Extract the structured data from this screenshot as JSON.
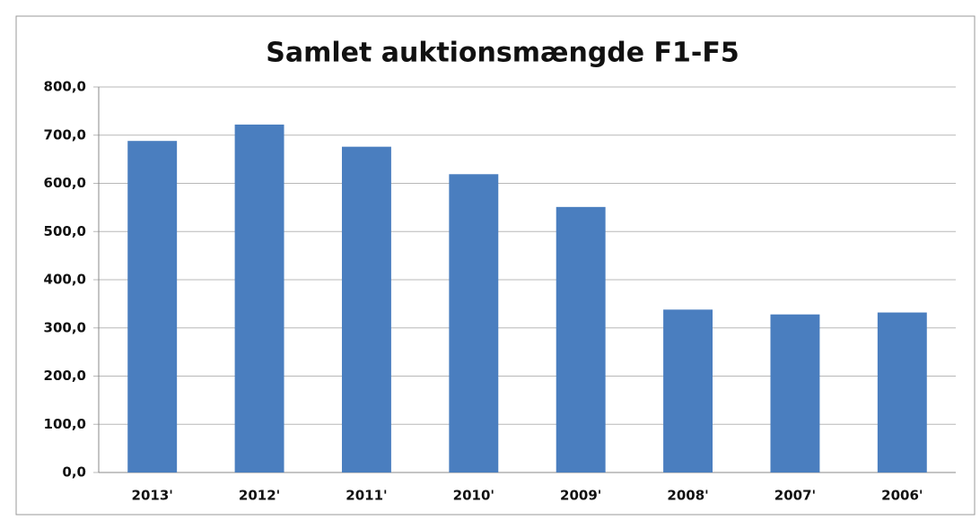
{
  "chart_data": {
    "type": "bar",
    "title": "Samlet auktionsmængde F1-F5",
    "categories": [
      "2013'",
      "2012'",
      "2011'",
      "2010'",
      "2009'",
      "2008'",
      "2007'",
      "2006'"
    ],
    "values": [
      688,
      722,
      676,
      619,
      551,
      338,
      328,
      332
    ],
    "color": "#4a7ebf",
    "ylim": [
      0,
      800
    ],
    "yticks": [
      {
        "value": 0,
        "label": "0,0"
      },
      {
        "value": 100,
        "label": "100,0"
      },
      {
        "value": 200,
        "label": "200,0"
      },
      {
        "value": 300,
        "label": "300,0"
      },
      {
        "value": 400,
        "label": "400,0"
      },
      {
        "value": 500,
        "label": "500,0"
      },
      {
        "value": 600,
        "label": "600,0"
      },
      {
        "value": 700,
        "label": "700,0"
      },
      {
        "value": 800,
        "label": "800,0"
      }
    ],
    "grid": true
  }
}
